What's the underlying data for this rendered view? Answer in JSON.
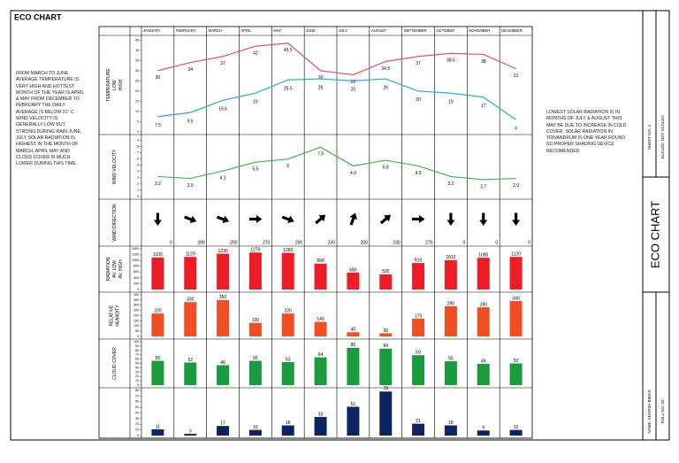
{
  "title": "ECO CHART",
  "left_note": "FROM MARCH TO JUNE AVERAGE TEMPERATURE IS VERY HIGH AND HOTTEST MONTH OF THE YEAR IS APRIL & MAY FROM DECEMBER TO FEBRUARY THE DAILY AVERAGE IS BELOW 21° C WIND VELOCITY IS GENERALLY LOW BUT STRONG DURING RAIN JUNE, JULY SOLAR RADIATION IS HIGHEST IN THE MONTH OF MARCH, APRIL MAY AND CLOUD COVER IS MUCH LOWER DURING THIS TIME.",
  "right_note": "LOWEST SOLAR RADIATION IS IN MONTHS OF JULY & AUGUST THIS MAY BE DUE TO INCREASE IN COLD COVER. SOLAR RADIATION IN TRIVANDRUM IS ONE YEAR ROUND SO PROPER SHADING DEVICE RECOMENDED",
  "title_block": {
    "sheet": "SHEET NO. 4",
    "scale": "SCALED: NOT SCALED",
    "title": "ECO CHART",
    "name": "NAME: ADARSH BIMAS",
    "roll": "ROLL NO. 02"
  },
  "chart_data": [
    {
      "type": "line",
      "ylabel": [
        "TEMPERATURE",
        "LOW",
        "HIGH"
      ],
      "categories": [
        "JANUARY",
        "FEBRUARY",
        "MARCH",
        "APRIL",
        "MAY",
        "JUNE",
        "JULY",
        "AUGUST",
        "SEPTEMBER",
        "OCTOBER",
        "NOVEMBER",
        "DECEMBER"
      ],
      "series": [
        {
          "color": "#e8505b",
          "values": [
            30,
            34,
            37,
            42,
            43.5,
            30,
            28,
            34.5,
            37,
            38.5,
            38,
            31
          ]
        },
        {
          "color": "#29a8e0",
          "values": [
            7.5,
            9.5,
            15.5,
            19,
            25.5,
            26,
            25,
            26,
            20,
            19,
            17,
            6
          ]
        }
      ],
      "ylim": [
        0,
        46
      ],
      "yticks": [
        0,
        5,
        10,
        15,
        20,
        25,
        30,
        35,
        40,
        45
      ]
    },
    {
      "type": "line",
      "ylabel": [
        "WIND VELOCITY"
      ],
      "series": [
        {
          "color": "#3cb54a",
          "values": [
            3.2,
            2.9,
            4.1,
            5.5,
            6,
            7.9,
            4.9,
            5.8,
            4.9,
            3.2,
            2.7,
            2.9
          ]
        }
      ],
      "ylim": [
        0,
        9.5
      ],
      "yticks": [
        0,
        1,
        2,
        3,
        4,
        5,
        6,
        7,
        8,
        9
      ]
    },
    {
      "type": "direction",
      "ylabel": [
        "WIND DIRECTION"
      ],
      "values": [
        0,
        290,
        290,
        270,
        290,
        230,
        200,
        230,
        270,
        0,
        0,
        0
      ]
    },
    {
      "type": "bar",
      "ylabel": [
        "RADIATION",
        "AV. LOW",
        "AV. HIGH"
      ],
      "color": "#ee1c24",
      "values": [
        1100,
        1120,
        1230,
        1270,
        1260,
        890,
        580,
        520,
        910,
        1010,
        1090,
        1120
      ],
      "ylim": [
        0,
        1400
      ],
      "yticks": [
        0,
        200,
        400,
        600,
        800,
        1000,
        1200,
        1400
      ]
    },
    {
      "type": "bar",
      "ylabel": [
        "RELATIVE",
        "HUMIDITY"
      ],
      "color": "#f04e23",
      "values": [
        220,
        330,
        350,
        130,
        220,
        140,
        40,
        30,
        170,
        290,
        280,
        340
      ],
      "ylim": [
        0,
        400
      ],
      "yticks": [
        0,
        50,
        100,
        150,
        200,
        250,
        300,
        350,
        400
      ]
    },
    {
      "type": "bar",
      "ylabel": [
        "CLOUD COVER"
      ],
      "color": "#1a9b3c",
      "values": [
        56,
        52,
        46,
        56,
        53,
        64,
        86,
        84,
        69,
        55,
        49,
        50
      ],
      "ylim": [
        0,
        100
      ],
      "yticks": [
        0,
        10,
        20,
        30,
        40,
        50,
        60,
        70,
        80,
        90,
        100
      ]
    },
    {
      "type": "bar",
      "color": "#0c2461",
      "values": [
        11,
        3,
        17,
        10,
        18,
        33,
        51,
        78,
        21,
        18,
        9,
        10
      ],
      "ylim": [
        0,
        80
      ],
      "yticks": [
        0,
        10,
        20,
        30,
        40,
        50,
        60,
        70,
        80
      ]
    }
  ]
}
